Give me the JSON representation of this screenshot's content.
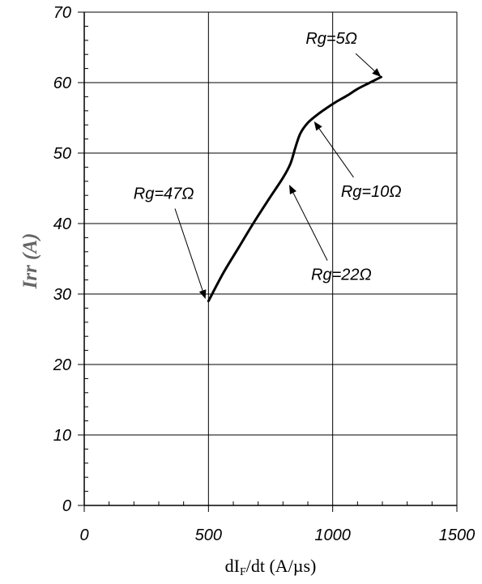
{
  "chart_data": {
    "type": "line",
    "xlabel": "dIF/dt (A/µs)",
    "xlabel_parts": {
      "base": "dI",
      "sub": "F",
      "rest": "/dt (A/µs)"
    },
    "ylabel": "Irr (A)",
    "xlim": [
      0,
      1500
    ],
    "ylim": [
      0,
      70
    ],
    "x_ticks": [
      0,
      500,
      1000,
      1500
    ],
    "x_tick_labels": [
      "0",
      "500",
      "1000",
      "1500"
    ],
    "y_ticks": [
      0,
      10,
      20,
      30,
      40,
      50,
      60,
      70
    ],
    "y_tick_labels": [
      "0",
      "10",
      "20",
      "30",
      "40",
      "50",
      "60",
      "70"
    ],
    "grid": true,
    "series": [
      {
        "x": [
          500,
          560,
          620,
          680,
          740,
          800,
          830,
          850,
          870,
          900,
          940,
          980,
          1020,
          1060,
          1100,
          1150,
          1195
        ],
        "y": [
          29,
          33,
          36.5,
          40,
          43.3,
          46.5,
          48.5,
          50.8,
          52.8,
          54.3,
          55.5,
          56.5,
          57.4,
          58.2,
          59.1,
          60.0,
          60.8
        ]
      }
    ],
    "annotations": [
      {
        "text": "Rg=5Ω",
        "at": [
          1195,
          60.8
        ],
        "label_pos": [
          995,
          65.5
        ]
      },
      {
        "text": "Rg=10Ω",
        "at": [
          925,
          54.5
        ],
        "label_pos": [
          1155,
          43.8
        ]
      },
      {
        "text": "Rg=22Ω",
        "at": [
          825,
          45.5
        ],
        "label_pos": [
          1035,
          32.0
        ]
      },
      {
        "text": "Rg=47Ω",
        "at": [
          488,
          29.3
        ],
        "label_pos": [
          320,
          43.5
        ]
      }
    ]
  }
}
